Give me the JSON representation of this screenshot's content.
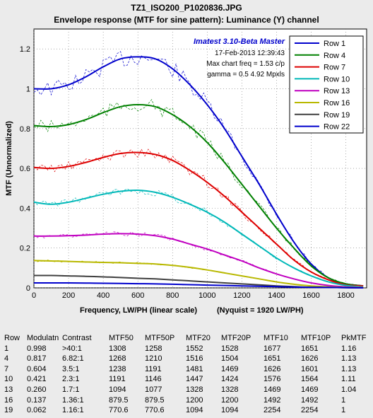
{
  "chart_data": {
    "type": "line",
    "title_line1": "TZ1_ISO200_P1020836.JPG",
    "title_line2": "Envelope response (MTF for sine pattern):  Luminance (Y) channel",
    "xlabel": "Frequency, LW/PH (linear scale)",
    "nyquist_label": "(Nyquist = 1920 LW/PH)",
    "ylabel": "MTF (Unnormalized)",
    "xlim": [
      0,
      1920
    ],
    "ylim": [
      0,
      1.3
    ],
    "x_ticks": [
      "0",
      "200",
      "400",
      "600",
      "800",
      "1000",
      "1200",
      "1400",
      "1600",
      "1800"
    ],
    "y_ticks": [
      "0",
      "0.2",
      "0.4",
      "0.6",
      "0.8",
      "1",
      "1.2"
    ],
    "grid": true,
    "legend_position": "top-right",
    "info": {
      "software": "Imatest 3.10-Beta Master",
      "date": "17-Feb-2013 12:39:43",
      "max_freq": "Max chart freq = 1.53 c/p",
      "gamma": "gamma = 0.5   4.92 Mpxls"
    },
    "series": [
      {
        "name": "Row 1",
        "color": "#0000cc",
        "x": [
          0,
          100,
          200,
          300,
          400,
          500,
          600,
          700,
          800,
          900,
          1000,
          1100,
          1200,
          1300,
          1400,
          1500,
          1600,
          1700,
          1800,
          1900
        ],
        "y": [
          1.0,
          1.0,
          1.02,
          1.06,
          1.11,
          1.15,
          1.16,
          1.15,
          1.1,
          1.02,
          0.92,
          0.8,
          0.66,
          0.52,
          0.37,
          0.23,
          0.12,
          0.05,
          0.02,
          0.01
        ]
      },
      {
        "name": "Row 4",
        "color": "#008000",
        "x": [
          0,
          100,
          200,
          300,
          400,
          500,
          600,
          700,
          800,
          900,
          1000,
          1100,
          1200,
          1300,
          1400,
          1500,
          1600,
          1700,
          1800,
          1900
        ],
        "y": [
          0.815,
          0.81,
          0.82,
          0.845,
          0.88,
          0.91,
          0.92,
          0.91,
          0.87,
          0.81,
          0.73,
          0.63,
          0.52,
          0.41,
          0.3,
          0.2,
          0.11,
          0.05,
          0.02,
          0.01
        ]
      },
      {
        "name": "Row 7",
        "color": "#dd0000",
        "x": [
          0,
          100,
          200,
          300,
          400,
          500,
          600,
          700,
          800,
          900,
          1000,
          1100,
          1200,
          1300,
          1400,
          1500,
          1600,
          1700,
          1800,
          1900
        ],
        "y": [
          0.605,
          0.6,
          0.61,
          0.63,
          0.655,
          0.675,
          0.68,
          0.67,
          0.64,
          0.59,
          0.53,
          0.46,
          0.38,
          0.3,
          0.22,
          0.14,
          0.08,
          0.04,
          0.015,
          0.01
        ]
      },
      {
        "name": "Row 10",
        "color": "#00b8b8",
        "x": [
          0,
          100,
          200,
          300,
          400,
          500,
          600,
          700,
          800,
          900,
          1000,
          1100,
          1200,
          1300,
          1400,
          1500,
          1600,
          1700,
          1800,
          1900
        ],
        "y": [
          0.43,
          0.42,
          0.43,
          0.45,
          0.47,
          0.485,
          0.49,
          0.48,
          0.455,
          0.42,
          0.38,
          0.33,
          0.27,
          0.21,
          0.15,
          0.1,
          0.06,
          0.03,
          0.012,
          0.005
        ]
      },
      {
        "name": "Row 13",
        "color": "#c000c0",
        "x": [
          0,
          100,
          200,
          300,
          400,
          500,
          600,
          700,
          800,
          900,
          1000,
          1100,
          1200,
          1300,
          1400,
          1500,
          1600,
          1700,
          1800,
          1900
        ],
        "y": [
          0.26,
          0.26,
          0.262,
          0.265,
          0.27,
          0.272,
          0.27,
          0.262,
          0.245,
          0.22,
          0.195,
          0.165,
          0.135,
          0.1,
          0.07,
          0.045,
          0.025,
          0.012,
          0.005,
          0.002
        ]
      },
      {
        "name": "Row 16",
        "color": "#b8b800",
        "x": [
          0,
          100,
          200,
          300,
          400,
          500,
          600,
          700,
          800,
          900,
          1000,
          1100,
          1200,
          1300,
          1400,
          1500,
          1600,
          1700,
          1800,
          1900
        ],
        "y": [
          0.137,
          0.135,
          0.133,
          0.13,
          0.128,
          0.126,
          0.123,
          0.12,
          0.113,
          0.103,
          0.09,
          0.075,
          0.06,
          0.045,
          0.03,
          0.018,
          0.01,
          0.005,
          0.002,
          0.001
        ]
      },
      {
        "name": "Row 19",
        "color": "#404040",
        "x": [
          0,
          100,
          200,
          300,
          400,
          500,
          600,
          700,
          800,
          900,
          1000,
          1100,
          1200,
          1300,
          1400,
          1500,
          1600,
          1700,
          1800,
          1900
        ],
        "y": [
          0.062,
          0.062,
          0.06,
          0.058,
          0.055,
          0.052,
          0.048,
          0.045,
          0.04,
          0.035,
          0.03,
          0.025,
          0.02,
          0.015,
          0.01,
          0.006,
          0.003,
          0.002,
          0.001,
          0.0
        ]
      },
      {
        "name": "Row 22",
        "color": "#0000cc",
        "x": [
          0,
          100,
          200,
          300,
          400,
          500,
          600,
          700,
          800,
          900,
          1000,
          1100,
          1200,
          1300,
          1400,
          1500,
          1600,
          1700,
          1800,
          1900
        ],
        "y": [
          0.025,
          0.025,
          0.025,
          0.024,
          0.023,
          0.022,
          0.021,
          0.02,
          0.018,
          0.016,
          0.014,
          0.012,
          0.01,
          0.008,
          0.006,
          0.004,
          0.003,
          0.002,
          0.001,
          0.0
        ]
      }
    ]
  },
  "table": {
    "headers": [
      "Row",
      "Modulatn",
      "Contrast",
      "MTF50",
      "MTF50P",
      "MTF20",
      "MTF20P",
      "MTF10",
      "MTF10P",
      "PkMTF"
    ],
    "rows": [
      [
        "1",
        "0.998",
        ">40:1",
        "1308",
        "1258",
        "1552",
        "1528",
        "1677",
        "1651",
        "1.16"
      ],
      [
        "4",
        "0.817",
        "6.82:1",
        "1268",
        "1210",
        "1516",
        "1504",
        "1651",
        "1626",
        "1.13"
      ],
      [
        "7",
        "0.604",
        "3.5:1",
        "1238",
        "1191",
        "1481",
        "1469",
        "1626",
        "1601",
        "1.13"
      ],
      [
        "10",
        "0.421",
        "2.3:1",
        "1191",
        "1146",
        "1447",
        "1424",
        "1576",
        "1564",
        "1.11"
      ],
      [
        "13",
        "0.260",
        "1.7:1",
        "1094",
        "1077",
        "1328",
        "1328",
        "1469",
        "1469",
        "1.04"
      ],
      [
        "16",
        "0.137",
        "1.36:1",
        "879.5",
        "879.5",
        "1200",
        "1200",
        "1492",
        "1492",
        "1"
      ],
      [
        "19",
        "0.062",
        "1.16:1",
        "770.6",
        "770.6",
        "1094",
        "1094",
        "2254",
        "2254",
        "1"
      ]
    ]
  }
}
